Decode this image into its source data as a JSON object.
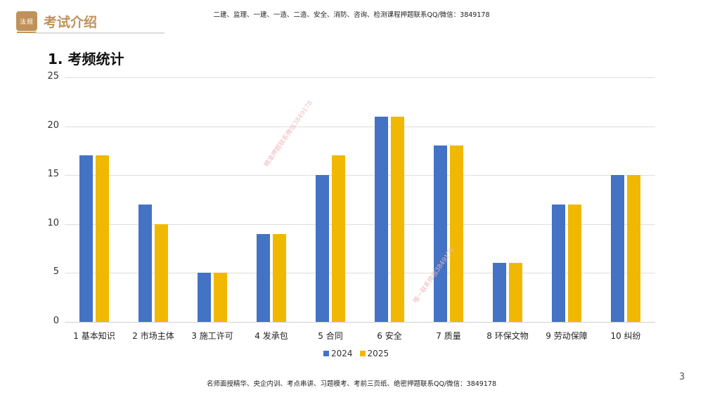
{
  "header": {
    "badge_text": "法规",
    "section_title": "考试介绍",
    "top_note": "二建、监理、一建、一造、二造、安全、消防、咨询、检测课程押题联系QQ/微信：3849178"
  },
  "page": {
    "heading": "1. 考频统计",
    "bottom_note": "名师面授精华、央企内训、考点串讲、习题模考、考前三页纸、绝密押题联系QQ/微信：3849178",
    "page_number": "3"
  },
  "watermarks": [
    "精准押题联系微信3849178",
    "唯一联系微信3849178"
  ],
  "colors": {
    "series_2024": "#4472c4",
    "series_2025": "#f0b800",
    "accent": "#c0925a"
  },
  "chart_data": {
    "type": "bar",
    "title": "考频统计",
    "xlabel": "",
    "ylabel": "",
    "ylim": [
      0,
      25
    ],
    "yticks": [
      0,
      5,
      10,
      15,
      20,
      25
    ],
    "grid": true,
    "legend_position": "bottom",
    "categories": [
      "1 基本知识",
      "2 市场主体",
      "3 施工许可",
      "4 发承包",
      "5 合同",
      "6 安全",
      "7 质量",
      "8 环保文物",
      "9 劳动保障",
      "10 纠纷"
    ],
    "series": [
      {
        "name": "2024",
        "color": "#4472c4",
        "values": [
          17,
          12,
          5,
          9,
          15,
          21,
          18,
          6,
          12,
          15
        ]
      },
      {
        "name": "2025",
        "color": "#f0b800",
        "values": [
          17,
          10,
          5,
          9,
          17,
          21,
          18,
          6,
          12,
          15
        ]
      }
    ]
  }
}
